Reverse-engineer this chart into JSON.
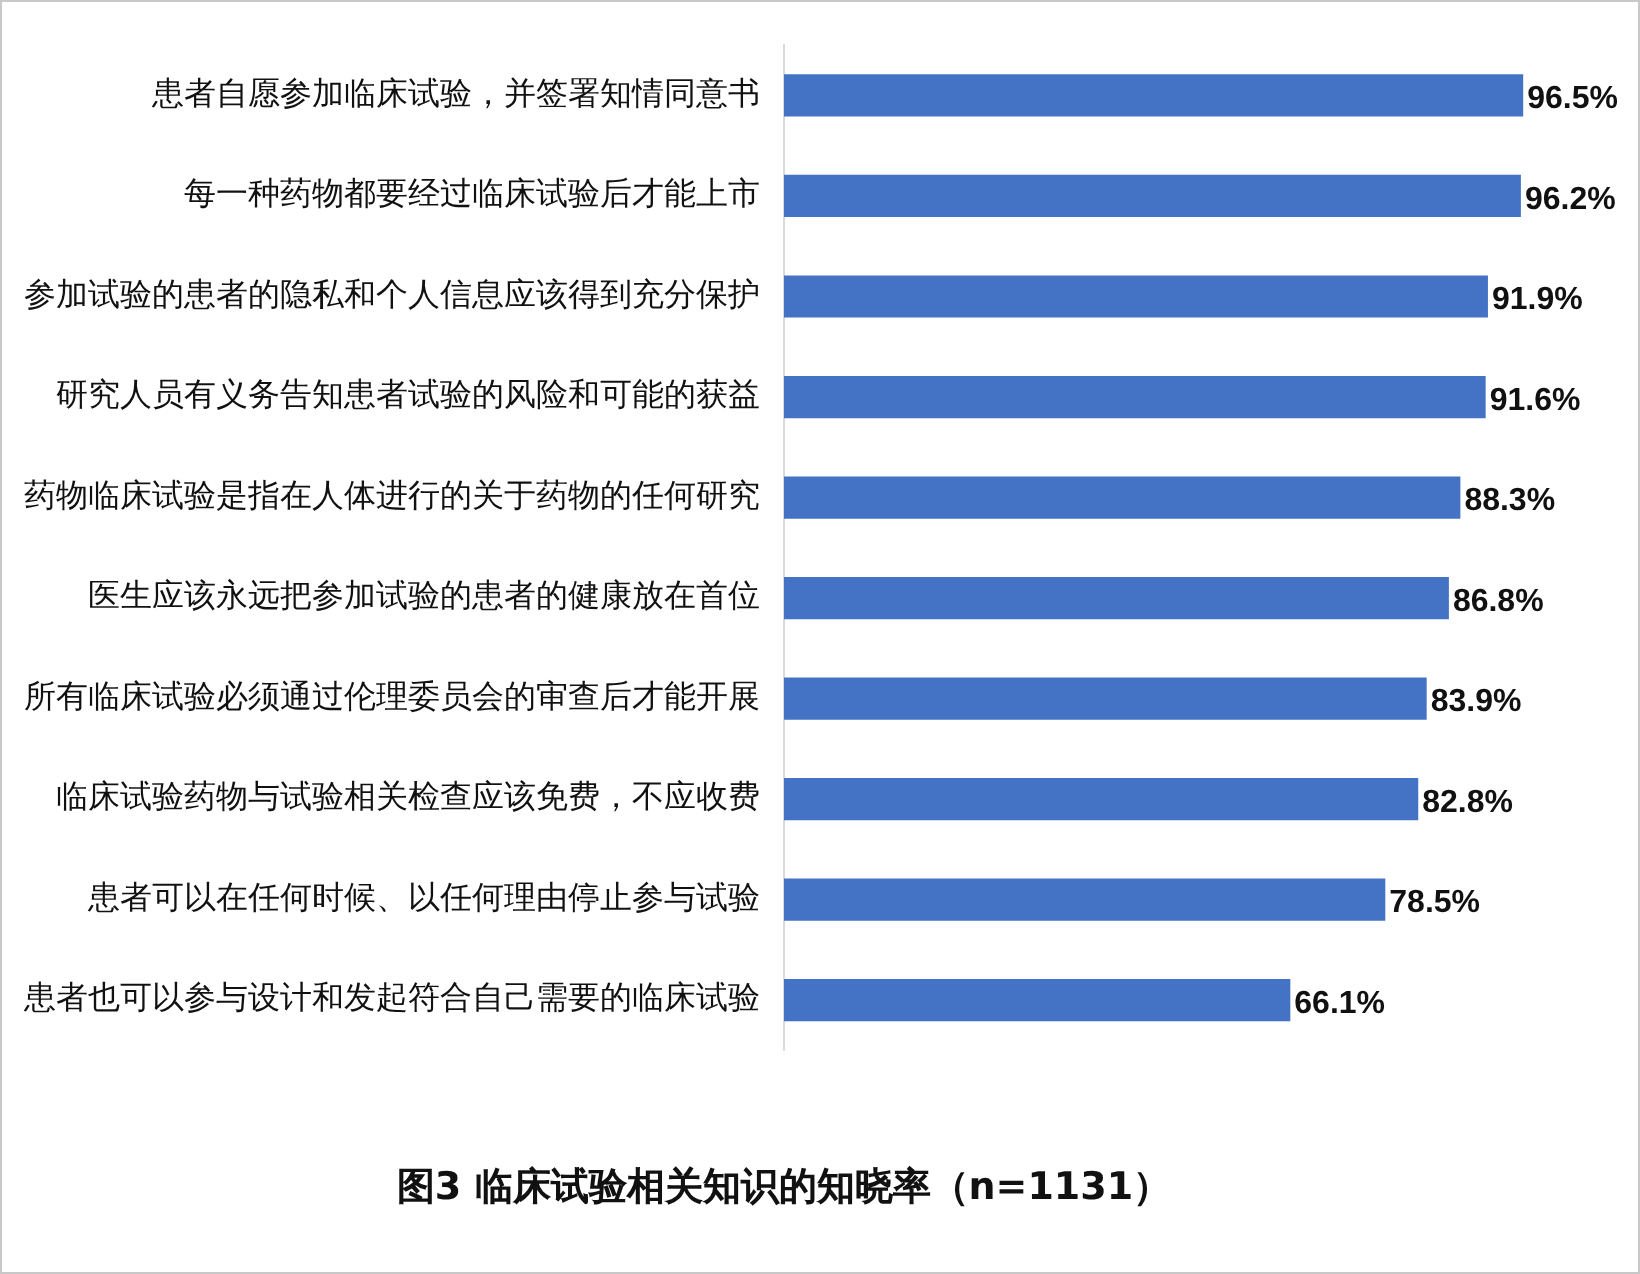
{
  "chart_data": {
    "type": "bar",
    "orientation": "horizontal",
    "title": "图3 临床试验相关知识的知晓率（n=1131）",
    "categories": [
      "患者自愿参加临床试验，并签署知情同意书",
      "每一种药物都要经过临床试验后才能上市",
      "参加试验的患者的隐私和个人信息应该得到充分保护",
      "研究人员有义务告知患者试验的风险和可能的获益",
      "药物临床试验是指在人体进行的关于药物的任何研究",
      "医生应该永远把参加试验的患者的健康放在首位",
      "所有临床试验必须通过伦理委员会的审查后才能开展",
      "临床试验药物与试验相关检查应该免费，不应收费",
      "患者可以在任何时候、以任何理由停止参与试验",
      "患者也可以参与设计和发起符合自己需要的临床试验"
    ],
    "values": [
      96.5,
      96.2,
      91.9,
      91.6,
      88.3,
      86.8,
      83.9,
      82.8,
      78.5,
      66.1
    ],
    "value_labels": [
      "96.5%",
      "96.2%",
      "91.9%",
      "91.6%",
      "88.3%",
      "86.8%",
      "83.9%",
      "82.8%",
      "78.5%",
      "66.1%"
    ],
    "color": "#4472c4",
    "tick_labels": "y",
    "legend": false
  }
}
